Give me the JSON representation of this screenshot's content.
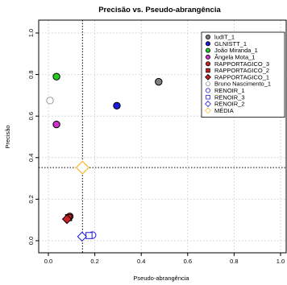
{
  "chart_data": {
    "type": "scatter",
    "title": "Precisão vs. Pseudo-abrangência",
    "xlabel": "Pseudo-abrangência",
    "ylabel": "Precisão",
    "xlim": [
      0,
      1
    ],
    "ylim": [
      0,
      1
    ],
    "xticks": [
      "0.0",
      "0.2",
      "0.4",
      "0.6",
      "0.8",
      "1.0"
    ],
    "yticks": [
      "0.0",
      "0.2",
      "0.4",
      "0.6",
      "0.8",
      "1.0"
    ],
    "grid": true,
    "legend_position": "top-right",
    "reference_lines": {
      "x": 0.147,
      "y": 0.352
    },
    "series": [
      {
        "name": "ludIT_1",
        "shape": "circle",
        "fill": "#808080",
        "stroke": "#000000",
        "x": 0.475,
        "y": 0.765
      },
      {
        "name": "GLNISTT_1",
        "shape": "circle",
        "fill": "#1a1adb",
        "stroke": "#000000",
        "x": 0.295,
        "y": 0.65
      },
      {
        "name": "João Miranda_1",
        "shape": "circle",
        "fill": "#22cc22",
        "stroke": "#000000",
        "x": 0.035,
        "y": 0.79
      },
      {
        "name": "Ângela Mota_1",
        "shape": "circle",
        "fill": "#cc33cc",
        "stroke": "#000000",
        "x": 0.035,
        "y": 0.56
      },
      {
        "name": "RAPPORTAGICO_3",
        "shape": "circle",
        "fill": "#cc2222",
        "stroke": "#000000",
        "x": 0.092,
        "y": 0.117
      },
      {
        "name": "RAPPORTAGICO_2",
        "shape": "square",
        "fill": "#cc2222",
        "stroke": "#000000",
        "x": 0.087,
        "y": 0.111
      },
      {
        "name": "RAPPORTAGICO_1",
        "shape": "diamond",
        "fill": "#cc2222",
        "stroke": "#000000",
        "x": 0.08,
        "y": 0.104
      },
      {
        "name": "Bruno Nascimento_1",
        "shape": "circle",
        "fill": "#ffffff",
        "stroke": "#999999",
        "x": 0.007,
        "y": 0.675
      },
      {
        "name": "RENOIR_1",
        "shape": "circle",
        "fill": "#ffffff",
        "stroke": "#1a1adb",
        "x": 0.19,
        "y": 0.027
      },
      {
        "name": "RENOIR_3",
        "shape": "square",
        "fill": "#ffffff",
        "stroke": "#1a1adb",
        "x": 0.175,
        "y": 0.025
      },
      {
        "name": "RENOIR_2",
        "shape": "diamond",
        "fill": "#ffffff",
        "stroke": "#1a1adb",
        "x": 0.145,
        "y": 0.02
      },
      {
        "name": "MÉDIA",
        "shape": "diamond",
        "fill": "#ffffff",
        "stroke": "#f5c242",
        "x": 0.147,
        "y": 0.352
      }
    ]
  }
}
